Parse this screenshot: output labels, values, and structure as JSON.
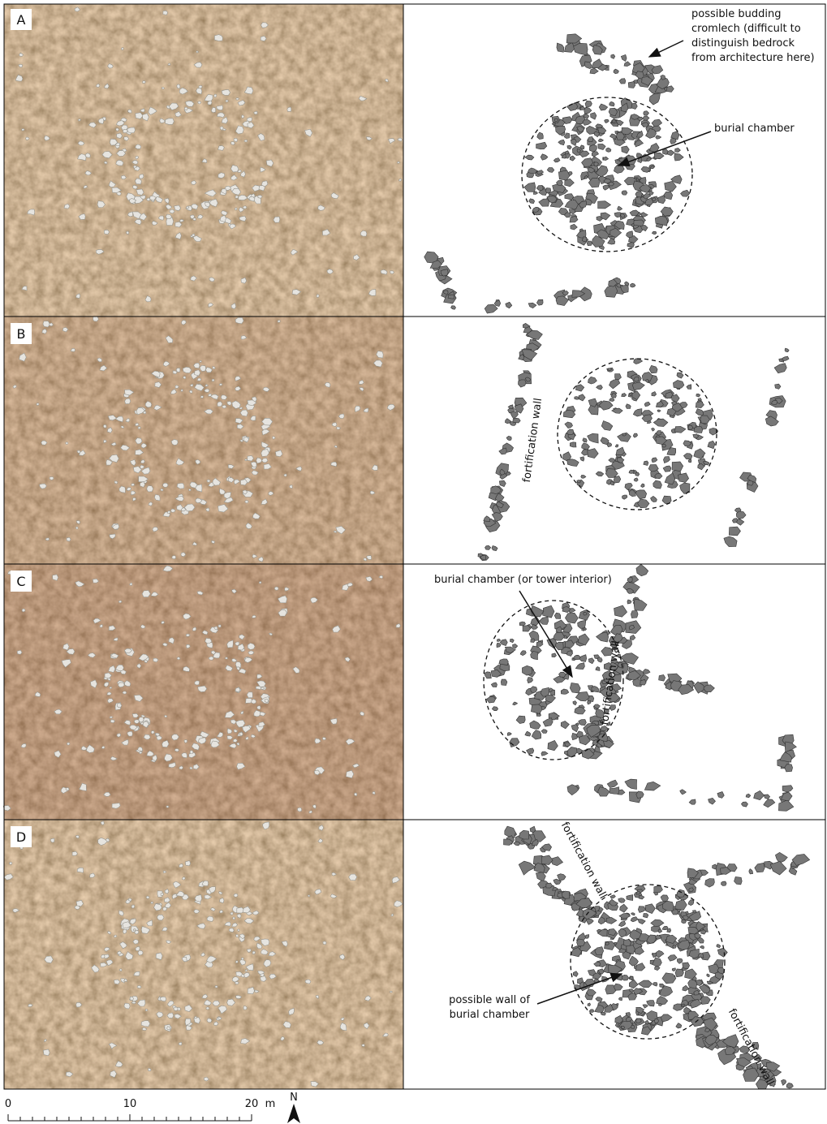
{
  "panels": [
    {
      "label": "A",
      "annotations": [
        {
          "lines": [
            "possible budding",
            "cromlech (difficult to",
            "distinguish bedrock",
            "from architecture here)"
          ]
        },
        {
          "lines": [
            "burial chamber"
          ]
        }
      ]
    },
    {
      "label": "B",
      "annotations": [
        {
          "lines": [
            "fortification wall"
          ]
        }
      ]
    },
    {
      "label": "C",
      "annotations": [
        {
          "lines": [
            "burial chamber (or tower interior)"
          ]
        },
        {
          "lines": [
            "fortification wall"
          ]
        }
      ]
    },
    {
      "label": "D",
      "annotations": [
        {
          "lines": [
            "fortification wall"
          ]
        },
        {
          "lines": [
            "possible wall of",
            "burial chamber"
          ]
        },
        {
          "lines": [
            "fortification wall"
          ]
        }
      ]
    }
  ],
  "scale_bar": {
    "labels": [
      "0",
      "10",
      "20"
    ],
    "unit": "m"
  },
  "north": "N"
}
